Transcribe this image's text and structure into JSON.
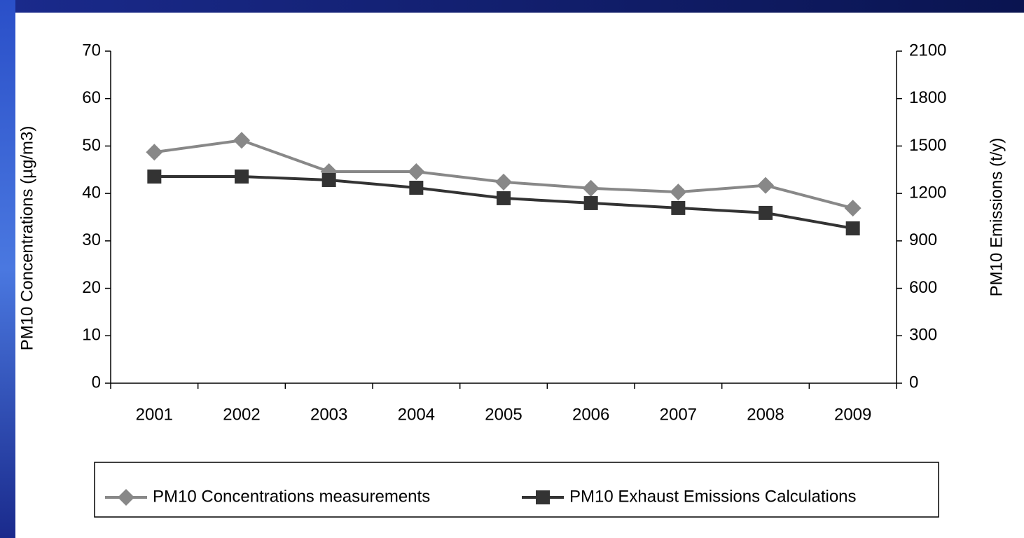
{
  "chart_data": {
    "type": "line",
    "categories": [
      "2001",
      "2002",
      "2003",
      "2004",
      "2005",
      "2006",
      "2007",
      "2008",
      "2009"
    ],
    "y_label": "PM10 Concentrations (µg/m3)",
    "y2_label": "PM10 Emissions (t/y)",
    "ylim": [
      0,
      70
    ],
    "yticks": [
      0,
      10,
      20,
      30,
      40,
      50,
      60,
      70
    ],
    "y2lim": [
      0,
      2100
    ],
    "y2ticks": [
      0,
      300,
      600,
      900,
      1200,
      1500,
      1800,
      2100
    ],
    "grid": false,
    "legend": "bottom",
    "series": [
      {
        "name": "PM10 Concentrations measurements",
        "color": "#888888",
        "marker": "diamond",
        "values": [
          48.7,
          51.2,
          44.6,
          44.6,
          42.4,
          41.1,
          40.3,
          41.7,
          36.9
        ]
      },
      {
        "name": "PM10 Exhaust Emissions Calculations",
        "color": "#333333",
        "marker": "square",
        "axis": "y2",
        "values": [
          1307,
          1307,
          1285,
          1236,
          1170,
          1139,
          1108,
          1077,
          979
        ]
      }
    ]
  }
}
